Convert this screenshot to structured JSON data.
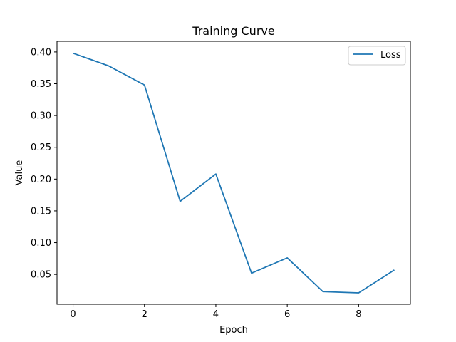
{
  "chart_data": {
    "type": "line",
    "title": "Training Curve",
    "xlabel": "Epoch",
    "ylabel": "Value",
    "xlim": [
      -0.45,
      9.45
    ],
    "ylim": [
      0.0031,
      0.4167
    ],
    "xticks": [
      0,
      2,
      4,
      6,
      8
    ],
    "xtick_labels": [
      "0",
      "2",
      "4",
      "6",
      "8"
    ],
    "yticks": [
      0.05,
      0.1,
      0.15,
      0.2,
      0.25,
      0.3,
      0.35,
      0.4
    ],
    "ytick_labels": [
      "0.05",
      "0.10",
      "0.15",
      "0.20",
      "0.25",
      "0.30",
      "0.35",
      "0.40"
    ],
    "grid": false,
    "legend_position": "top-right",
    "series": [
      {
        "name": "Loss",
        "color": "#1f77b4",
        "x": [
          0,
          1,
          2,
          3,
          4,
          5,
          6,
          7,
          8,
          9
        ],
        "y": [
          0.398,
          0.378,
          0.348,
          0.165,
          0.208,
          0.052,
          0.076,
          0.023,
          0.021,
          0.057
        ]
      }
    ]
  }
}
